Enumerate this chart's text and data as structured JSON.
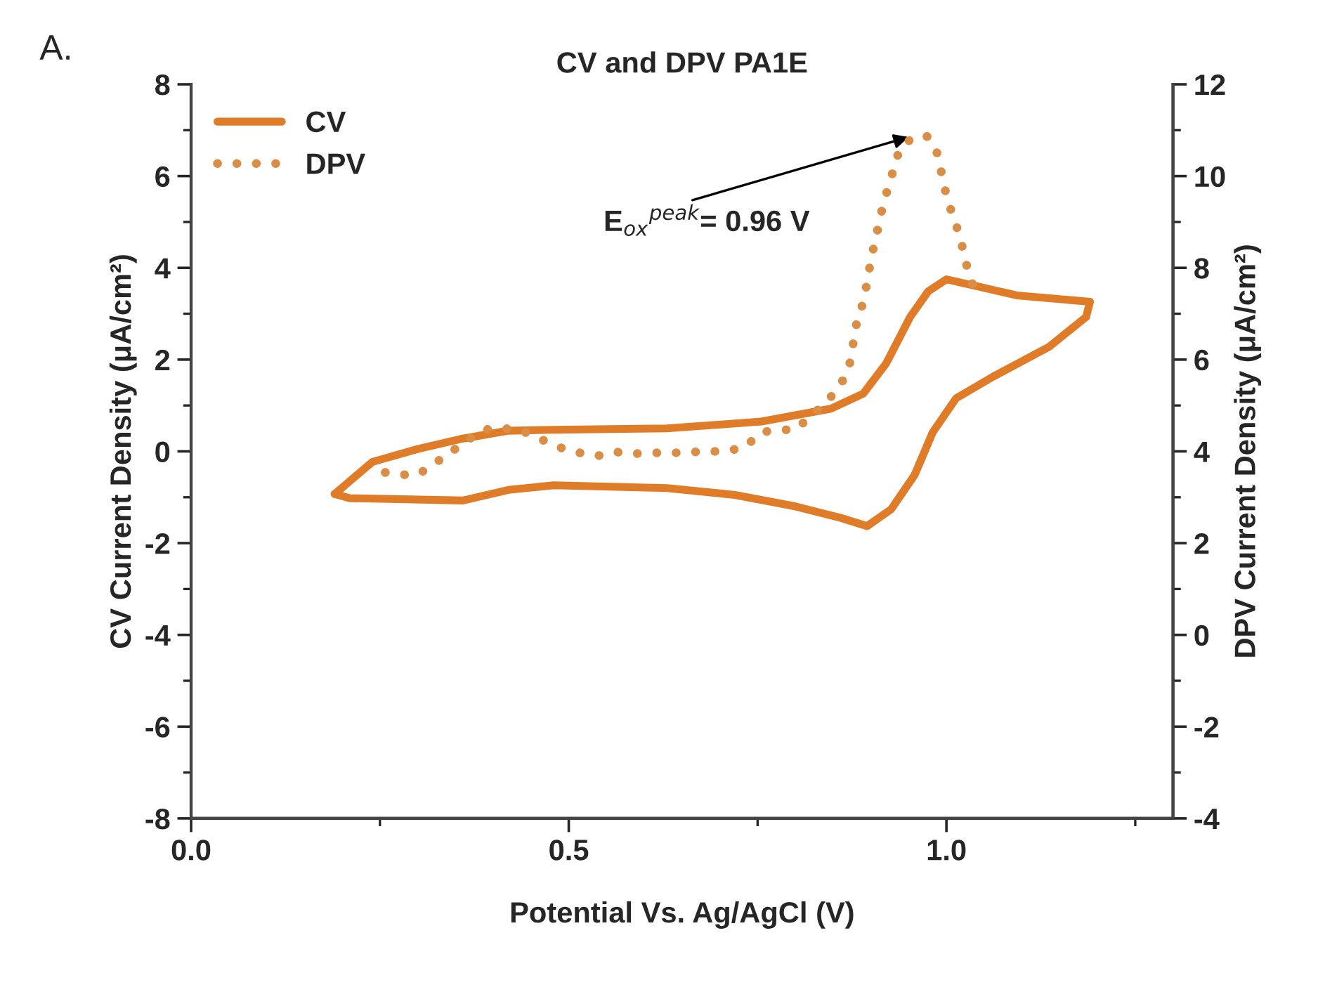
{
  "chart_data": {
    "type": "line",
    "title": "CV and DPV PA1E",
    "xlabel": "Potential Vs. Ag/AgCl (V)",
    "ylabel": "CV Current Density (μA/cm²)",
    "y2label": "DPV Current Density (μA/cm²)",
    "xlim": [
      0,
      1.3
    ],
    "xticks": [
      {
        "value": 0,
        "label": "0.0"
      },
      0.5,
      {
        "value": 1,
        "label": "1.0"
      }
    ],
    "ylim": [
      -8,
      8
    ],
    "yticks": [
      -8,
      -6,
      -4,
      -2,
      0,
      2,
      4,
      6,
      8
    ],
    "y2lim": [
      -4,
      12
    ],
    "y2ticks": [
      -4,
      -2,
      0,
      2,
      4,
      6,
      8,
      10,
      12
    ],
    "legend": "top left",
    "grid": false,
    "annotations": [
      "A.",
      {
        "text": "E$_{ox}$$^{peak}$= 0.96 V",
        "x": 0.95,
        "y": 6.85
      }
    ],
    "series": [
      {
        "name": "CV",
        "color": "#e07b28",
        "line_style": "solid",
        "x": [
          0.19,
          0.24,
          0.3,
          0.36,
          0.42,
          0.48,
          0.63,
          0.755,
          0.847,
          0.89,
          0.92,
          0.952,
          0.976,
          1.0,
          1.032,
          1.093,
          1.155,
          1.19
        ],
        "values": [
          -0.93,
          -0.23,
          0.05,
          0.28,
          0.45,
          0.47,
          0.5,
          0.65,
          0.93,
          1.26,
          1.91,
          2.93,
          3.49,
          3.75,
          3.63,
          3.4,
          3.31,
          3.26
        ]
      },
      {
        "color": "#e07b28",
        "line_style": "solid",
        "x": [
          1.19,
          1.185,
          1.136,
          1.062,
          1.013,
          0.982,
          0.958,
          0.927,
          0.895,
          0.86,
          0.8,
          0.72,
          0.63,
          0.48,
          0.42,
          0.36,
          0.21,
          0.19
        ],
        "values": [
          3.26,
          2.93,
          2.28,
          1.63,
          1.16,
          0.42,
          -0.51,
          -1.26,
          -1.63,
          -1.45,
          -1.2,
          -0.95,
          -0.8,
          -0.74,
          -0.84,
          -1.07,
          -1.02,
          -0.93
        ]
      },
      {
        "name": "DPV",
        "color": "#d98d45",
        "line_style": "dotted",
        "axis": "y2",
        "x": [
          0.257,
          0.278,
          0.3,
          0.321,
          0.386,
          0.414,
          0.435,
          0.487,
          0.514,
          0.538,
          0.56,
          0.587,
          0.618,
          0.646,
          0.68,
          0.707,
          0.733,
          0.755,
          0.78,
          0.8,
          0.841,
          0.86,
          0.872,
          0.881,
          0.89,
          0.896,
          0.9,
          0.906,
          0.912,
          0.918,
          0.927,
          0.933,
          0.946,
          0.973,
          0.986,
          0.995,
          1.001,
          1.01,
          1.019,
          1.025,
          1.041
        ],
        "values": [
          3.54,
          3.49,
          3.49,
          3.72,
          4.47,
          4.5,
          4.47,
          4.09,
          3.97,
          3.9,
          3.99,
          3.95,
          3.97,
          3.97,
          4.0,
          4.0,
          4.09,
          4.42,
          4.47,
          4.47,
          5.07,
          5.44,
          5.91,
          6.79,
          7.26,
          7.77,
          8.19,
          8.61,
          9.08,
          9.49,
          9.96,
          10.38,
          10.75,
          10.89,
          10.61,
          9.96,
          9.49,
          9.08,
          8.61,
          8.15,
          7.31
        ]
      }
    ]
  }
}
